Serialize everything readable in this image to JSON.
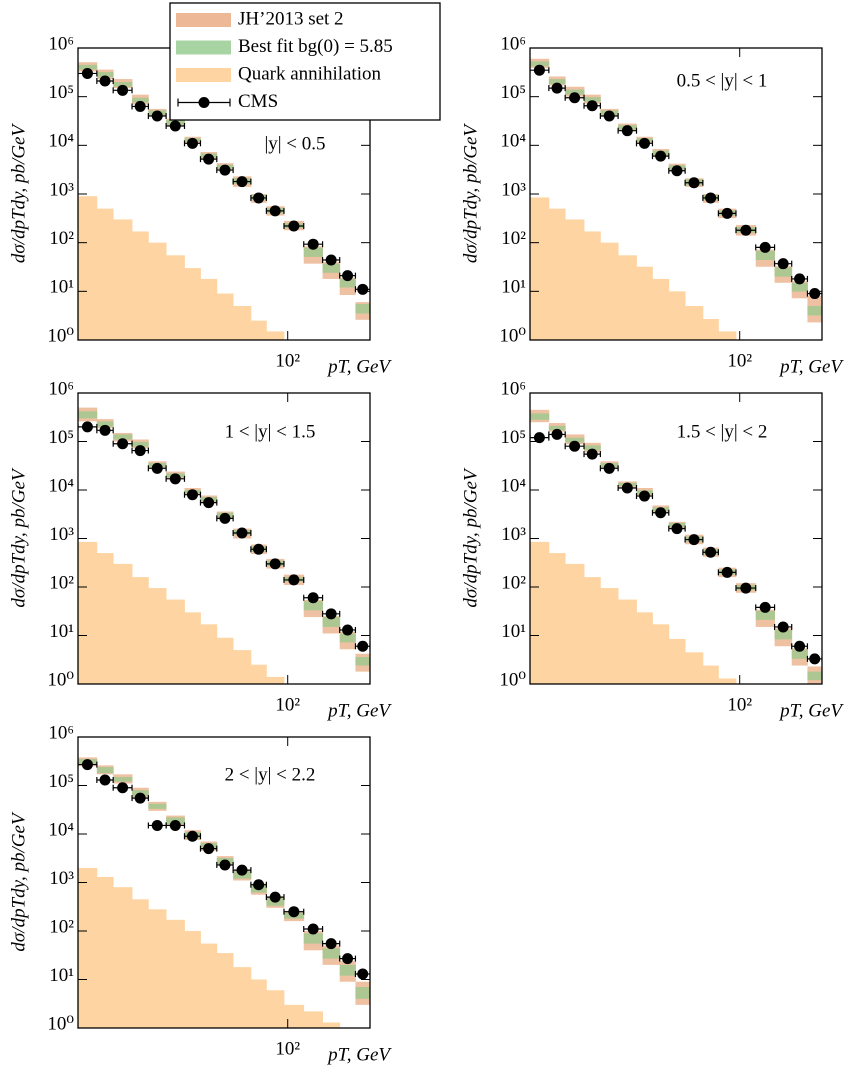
{
  "chart_data": [
    {
      "type": "histogram",
      "xlabel": "pT, GeV",
      "ylabel": "dσ/dpTdy, pb/GeV",
      "annotation": "|y| < 0.5",
      "bins": [
        18,
        21,
        24,
        28,
        32,
        37,
        43,
        49,
        56,
        64,
        74,
        84,
        97,
        114,
        133,
        153,
        174,
        196
      ],
      "xlim": [
        18,
        196
      ],
      "ylim": [
        1,
        1000000
      ],
      "log_x": true,
      "log_y": true,
      "xticks": [
        {
          "value": 100,
          "label": "10²"
        }
      ],
      "yticks": [
        {
          "value": 1,
          "label": "10⁰"
        },
        {
          "value": 10,
          "label": "10¹"
        },
        {
          "value": 100,
          "label": "10²"
        },
        {
          "value": 1000,
          "label": "10³"
        },
        {
          "value": 10000,
          "label": "10⁴"
        },
        {
          "value": 100000,
          "label": "10⁵"
        },
        {
          "value": 1000000,
          "label": "10⁶"
        }
      ],
      "series": [
        {
          "name": "JH’2013 set 2",
          "color": "#e8a67c",
          "lower": [
            330000,
            230000,
            150000,
            69000,
            40000,
            25000,
            11000,
            5200,
            3100,
            1400,
            660,
            360,
            180,
            37,
            18,
            8.4,
            2.6
          ],
          "upper": [
            510000,
            360000,
            230000,
            110000,
            56000,
            35000,
            15000,
            7300,
            4300,
            2300,
            1000,
            560,
            280,
            84,
            40,
            19,
            6
          ]
        },
        {
          "name": "Best fit bg(0) = 5.85",
          "color": "#92c98c",
          "lower": [
            360000,
            250000,
            160000,
            76000,
            42000,
            26000,
            12000,
            5500,
            3300,
            1600,
            750,
            400,
            200,
            51,
            24,
            12,
            3.5
          ],
          "upper": [
            450000,
            320000,
            200000,
            95000,
            52000,
            33000,
            14000,
            6800,
            4000,
            2100,
            950,
            520,
            250,
            79,
            37,
            18,
            5.5
          ]
        },
        {
          "name": "Quark annihilation",
          "color": "#fdd4a2",
          "values": [
            900,
            500,
            300,
            170,
            100,
            55,
            30,
            18,
            9,
            5,
            2.5,
            1.5,
            null,
            null,
            null,
            null,
            null
          ]
        },
        {
          "name": "CMS",
          "color": "#000000",
          "values": [
            300000,
            210000,
            135000,
            63000,
            40000,
            25000,
            11000,
            5200,
            3100,
            1800,
            830,
            450,
            220,
            93,
            44,
            21,
            11
          ]
        }
      ]
    },
    {
      "type": "histogram",
      "xlabel": "pT, GeV",
      "ylabel": "dσ/dpTdy, pb/GeV",
      "annotation": "0.5 < |y| < 1",
      "bins": [
        18,
        21,
        24,
        28,
        32,
        37,
        43,
        49,
        56,
        64,
        74,
        84,
        97,
        114,
        133,
        153,
        174,
        196
      ],
      "xlim": [
        18,
        196
      ],
      "ylim": [
        1,
        1000000
      ],
      "log_x": true,
      "log_y": true,
      "xticks": [
        {
          "value": 100,
          "label": "10²"
        }
      ],
      "yticks": [
        {
          "value": 1,
          "label": "10⁰"
        },
        {
          "value": 10,
          "label": "10¹"
        },
        {
          "value": 100,
          "label": "10²"
        },
        {
          "value": 1000,
          "label": "10³"
        },
        {
          "value": 10000,
          "label": "10⁴"
        },
        {
          "value": 100000,
          "label": "10⁵"
        },
        {
          "value": 1000000,
          "label": "10⁶"
        }
      ],
      "series": [
        {
          "color": "#e8a67c",
          "lower": [
            390000,
            170000,
            100000,
            72000,
            40000,
            20000,
            11000,
            6000,
            3000,
            1400,
            660,
            320,
            140,
            32,
            15,
            7.2,
            2.3
          ],
          "upper": [
            600000,
            260000,
            160000,
            110000,
            56000,
            28000,
            15000,
            8400,
            4200,
            2100,
            1000,
            500,
            230,
            72,
            33,
            16,
            8.1
          ]
        },
        {
          "color": "#92c98c",
          "lower": [
            420000,
            180000,
            110000,
            78000,
            42000,
            21000,
            12000,
            6300,
            3200,
            1500,
            750,
            360,
            160,
            44,
            20,
            9.9,
            3.2
          ],
          "upper": [
            530000,
            230000,
            140000,
            98000,
            52000,
            26000,
            14000,
            7800,
            3900,
            2000,
            950,
            460,
            210,
            68,
            31,
            15,
            5
          ]
        },
        {
          "color": "#fdd4a2",
          "values": [
            850,
            500,
            300,
            170,
            100,
            55,
            32,
            18,
            10,
            5,
            2.7,
            1.5,
            null,
            null,
            null,
            null,
            null
          ]
        },
        {
          "color": "#000000",
          "values": [
            350000,
            150000,
            95000,
            65000,
            40000,
            20000,
            11000,
            6000,
            3000,
            1700,
            830,
            400,
            180,
            80,
            37,
            18,
            9
          ]
        }
      ]
    },
    {
      "type": "histogram",
      "xlabel": "pT, GeV",
      "ylabel": "dσ/dpTdy, pb/GeV",
      "annotation": "1 < |y| < 1.5",
      "bins": [
        18,
        21,
        24,
        28,
        32,
        37,
        43,
        49,
        56,
        64,
        74,
        84,
        97,
        114,
        133,
        153,
        174,
        196
      ],
      "xlim": [
        18,
        196
      ],
      "ylim": [
        1,
        1000000
      ],
      "log_x": true,
      "log_y": true,
      "xticks": [
        {
          "value": 100,
          "label": "10²"
        }
      ],
      "yticks": [
        {
          "value": 1,
          "label": "10⁰"
        },
        {
          "value": 10,
          "label": "10¹"
        },
        {
          "value": 100,
          "label": "10²"
        },
        {
          "value": 1000,
          "label": "10³"
        },
        {
          "value": 10000,
          "label": "10⁴"
        },
        {
          "value": 100000,
          "label": "10⁵"
        },
        {
          "value": 1000000,
          "label": "10⁶"
        }
      ],
      "series": [
        {
          "color": "#e8a67c",
          "lower": [
            260000,
            190000,
            100000,
            72000,
            28000,
            17000,
            8000,
            5500,
            2600,
            1000,
            480,
            240,
            110,
            24,
            11,
            5.2,
            1.8
          ],
          "upper": [
            500000,
            290000,
            150000,
            110000,
            39000,
            24000,
            11000,
            7700,
            3600,
            1600,
            750,
            380,
            180,
            54,
            25,
            12,
            4.2
          ]
        },
        {
          "color": "#92c98c",
          "lower": [
            300000,
            200000,
            110000,
            78000,
            29000,
            18000,
            8400,
            5800,
            2700,
            1200,
            540,
            270,
            130,
            33,
            15,
            7.2,
            2.4
          ],
          "upper": [
            420000,
            260000,
            140000,
            98000,
            36000,
            22000,
            10000,
            7200,
            3400,
            1500,
            690,
            350,
            160,
            51,
            24,
            11,
            3.6
          ]
        },
        {
          "color": "#fdd4a2",
          "values": [
            850,
            500,
            300,
            160,
            95,
            55,
            30,
            17,
            9,
            5,
            2.5,
            1.4,
            null,
            null,
            null,
            null,
            null
          ]
        },
        {
          "color": "#000000",
          "values": [
            200000,
            170000,
            90000,
            65000,
            28000,
            17000,
            8000,
            5500,
            2600,
            1300,
            600,
            300,
            140,
            60,
            28,
            13,
            6
          ]
        }
      ]
    },
    {
      "type": "histogram",
      "xlabel": "pT, GeV",
      "ylabel": "dσ/dpTdy, pb/GeV",
      "annotation": "1.5 < |y| < 2",
      "bins": [
        18,
        21,
        24,
        28,
        32,
        37,
        43,
        49,
        56,
        64,
        74,
        84,
        97,
        114,
        133,
        153,
        174,
        196
      ],
      "xlim": [
        18,
        196
      ],
      "ylim": [
        1,
        1000000
      ],
      "log_x": true,
      "log_y": true,
      "xticks": [
        {
          "value": 100,
          "label": "10²"
        }
      ],
      "yticks": [
        {
          "value": 1,
          "label": "10⁰"
        },
        {
          "value": 10,
          "label": "10¹"
        },
        {
          "value": 100,
          "label": "10²"
        },
        {
          "value": 1000,
          "label": "10³"
        },
        {
          "value": 10000,
          "label": "10⁴"
        },
        {
          "value": 100000,
          "label": "10⁵"
        },
        {
          "value": 1000000,
          "label": "10⁶"
        }
      ],
      "series": [
        {
          "color": "#e8a67c",
          "lower": [
            250000,
            160000,
            88000,
            60000,
            28000,
            11000,
            7500,
            3400,
            1600,
            760,
            420,
            160,
            76,
            15,
            6,
            2.4,
            1
          ],
          "upper": [
            450000,
            240000,
            140000,
            94000,
            39000,
            15000,
            11000,
            4800,
            2200,
            1200,
            650,
            250,
            120,
            34,
            14,
            5.4,
            2.3
          ]
        },
        {
          "color": "#92c98c",
          "lower": [
            280000,
            170000,
            96000,
            66000,
            29000,
            12000,
            7900,
            3600,
            1700,
            860,
            470,
            180,
            86,
            21,
            8.3,
            3.3,
            1.2
          ],
          "upper": [
            380000,
            210000,
            120000,
            83000,
            36000,
            14000,
            9800,
            4400,
            2100,
            1100,
            600,
            230,
            110,
            32,
            13,
            5.1,
            1.8
          ]
        },
        {
          "color": "#fdd4a2",
          "values": [
            850,
            500,
            300,
            160,
            95,
            55,
            30,
            17,
            8.5,
            4.5,
            2.4,
            1.3,
            null,
            null,
            null,
            null,
            null
          ]
        },
        {
          "color": "#000000",
          "values": [
            120000,
            140000,
            80000,
            55000,
            28000,
            11000,
            7500,
            3400,
            1600,
            950,
            520,
            200,
            95,
            38,
            15,
            6,
            3.3
          ]
        }
      ]
    },
    {
      "type": "histogram",
      "xlabel": "pT, GeV",
      "ylabel": "dσ/dpTdy, pb/GeV",
      "annotation": "2 < |y| < 2.2",
      "bins": [
        18,
        21,
        24,
        28,
        32,
        37,
        43,
        49,
        56,
        64,
        74,
        84,
        97,
        114,
        133,
        153,
        174,
        196
      ],
      "xlim": [
        18,
        196
      ],
      "ylim": [
        1,
        1000000
      ],
      "log_x": true,
      "log_y": true,
      "xticks": [
        {
          "value": 100,
          "label": "10²"
        }
      ],
      "yticks": [
        {
          "value": 1,
          "label": "10⁰"
        },
        {
          "value": 10,
          "label": "10¹"
        },
        {
          "value": 100,
          "label": "10²"
        },
        {
          "value": 1000,
          "label": "10³"
        },
        {
          "value": 10000,
          "label": "10⁴"
        },
        {
          "value": 100000,
          "label": "10⁵"
        },
        {
          "value": 1000000,
          "label": "10⁶"
        }
      ],
      "series": [
        {
          "color": "#e8a67c",
          "lower": [
            250000,
            170000,
            110000,
            55000,
            30000,
            15000,
            7500,
            4500,
            2200,
            1100,
            560,
            300,
            160,
            40,
            20,
            9,
            3
          ],
          "upper": [
            380000,
            260000,
            170000,
            90000,
            46000,
            24000,
            12000,
            7000,
            3500,
            1800,
            950,
            520,
            260,
            100,
            50,
            24,
            9
          ]
        },
        {
          "color": "#92c98c",
          "lower": [
            270000,
            180000,
            120000,
            60000,
            33000,
            16000,
            8000,
            4800,
            2400,
            1200,
            620,
            330,
            180,
            55,
            27,
            12,
            4
          ],
          "upper": [
            350000,
            240000,
            150000,
            80000,
            42000,
            22000,
            11000,
            6500,
            3200,
            1700,
            880,
            480,
            240,
            90,
            44,
            20,
            7
          ]
        },
        {
          "color": "#fdd4a2",
          "values": [
            2000,
            1300,
            800,
            450,
            280,
            170,
            100,
            55,
            35,
            18,
            10,
            6,
            3,
            2.2,
            1.3,
            null,
            null
          ]
        },
        {
          "color": "#000000",
          "values": [
            270000,
            130000,
            90000,
            55000,
            15000,
            15000,
            9000,
            5000,
            2300,
            1800,
            900,
            500,
            250,
            110,
            55,
            27,
            13
          ]
        }
      ]
    }
  ]
}
